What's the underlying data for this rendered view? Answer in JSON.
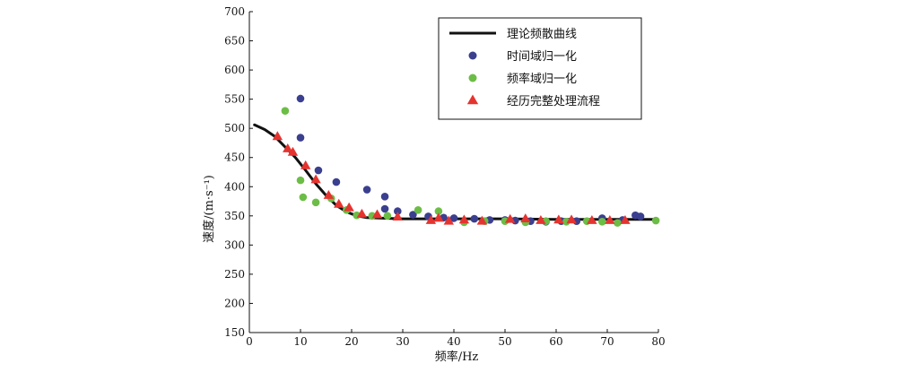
{
  "chart_data": {
    "type": "scatter",
    "xlabel": "频率/Hz",
    "ylabel": "速度/(m·s⁻¹)",
    "xlim": [
      0,
      80
    ],
    "ylim": [
      150,
      700
    ],
    "xticks": [
      0,
      10,
      20,
      30,
      40,
      50,
      60,
      70,
      80
    ],
    "yticks": [
      150,
      200,
      250,
      300,
      350,
      400,
      450,
      500,
      550,
      600,
      650,
      700
    ],
    "grid": false,
    "legend_position": "top-right",
    "series": [
      {
        "name": "理论频散曲线",
        "kind": "line",
        "color": "#111111",
        "x": [
          1,
          3,
          5,
          7,
          9,
          11,
          13,
          15,
          17,
          19,
          21,
          23,
          26,
          30,
          35,
          40,
          50,
          60,
          70,
          79
        ],
        "y": [
          506,
          498,
          486,
          468,
          450,
          428,
          405,
          385,
          368,
          357,
          350,
          347,
          346,
          345,
          345,
          345,
          345,
          344,
          344,
          344
        ]
      },
      {
        "name": "时间域归一化",
        "kind": "scatter-circle",
        "color": "#3b3f8f",
        "x": [
          10,
          10,
          13.5,
          17,
          23,
          26.5,
          26.5,
          29,
          32,
          35,
          38,
          40,
          44,
          47,
          50,
          52,
          55,
          58,
          61,
          64,
          69,
          73,
          75.5,
          76.5
        ],
        "y": [
          551,
          484,
          428,
          408,
          395,
          383,
          362,
          358,
          352,
          349,
          347,
          346,
          345,
          343,
          343,
          342,
          341,
          340,
          341,
          341,
          346,
          343,
          351,
          349
        ]
      },
      {
        "name": "频率域归一化",
        "kind": "scatter-circle",
        "color": "#6cbd45",
        "x": [
          7,
          10,
          10.5,
          13,
          16,
          19,
          21,
          24,
          27,
          33,
          37,
          42,
          46,
          50,
          54,
          58,
          62,
          66,
          69,
          72,
          79.5
        ],
        "y": [
          530,
          411,
          382,
          373,
          380,
          360,
          351,
          350,
          350,
          360,
          358,
          339,
          341,
          341,
          339,
          341,
          340,
          341,
          340,
          338,
          342
        ]
      },
      {
        "name": "经历完整处理流程",
        "kind": "scatter-triangle",
        "color": "#e53430",
        "x": [
          5.5,
          7.5,
          8.5,
          11,
          13,
          15.5,
          17.5,
          19.5,
          22,
          25,
          29,
          35.5,
          37,
          39,
          42,
          45.5,
          51,
          54,
          57,
          60.5,
          63,
          67,
          70.5,
          73.5
        ],
        "y": [
          486,
          465,
          459,
          436,
          412,
          385,
          370,
          364,
          353,
          352,
          348,
          342,
          346,
          341,
          343,
          341,
          344,
          345,
          342,
          343,
          343,
          342,
          342,
          342
        ]
      }
    ]
  }
}
